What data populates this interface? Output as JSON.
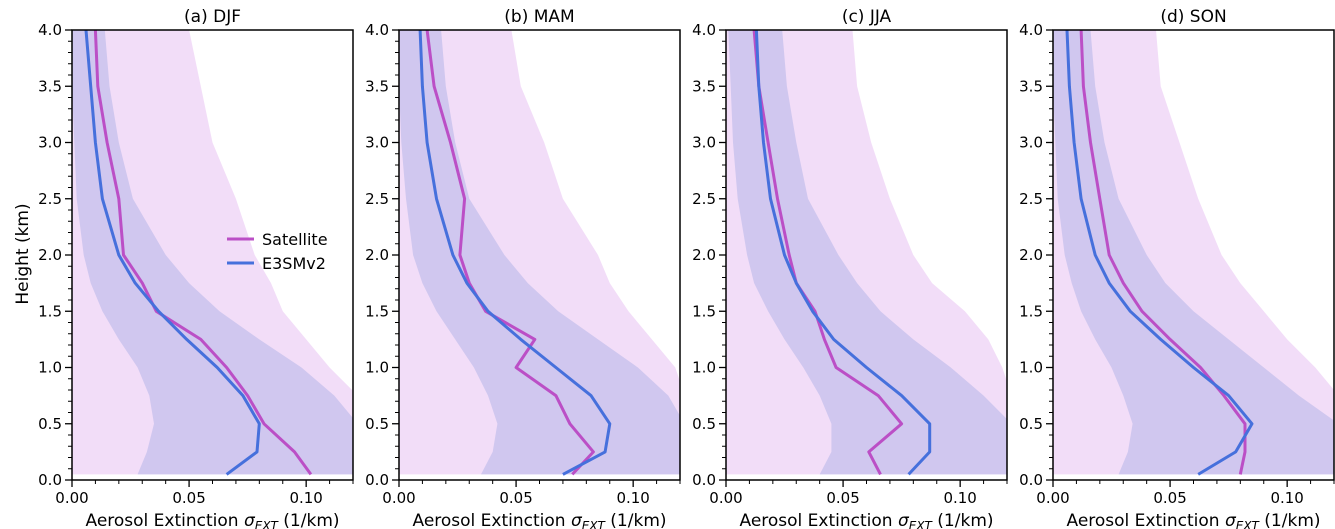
{
  "colors": {
    "satellite": "#bb4fc6",
    "e3sm": "#4670dc",
    "satellite_band": "#e3b3ef",
    "e3sm_band": "#a6ace5"
  },
  "y_axis_label": "Height (km)",
  "x_axis_label_prefix": "Aerosol Extinction ",
  "x_axis_label_symbol": "σ",
  "x_axis_label_subscript": "EXT",
  "x_axis_label_suffix": " (1/km)",
  "legend": {
    "placement": "center-right of panel (a)",
    "satellite": "Satellite",
    "e3sm": "E3SMv2"
  },
  "chart_data": [
    {
      "type": "line",
      "title": "(a) DJF",
      "xlim": [
        0,
        0.12
      ],
      "ylim": [
        0,
        4.0
      ],
      "xticks": [
        "0.00",
        "0.05",
        "0.10"
      ],
      "yticks": [
        "0.0",
        "0.5",
        "1.0",
        "1.5",
        "2.0",
        "2.5",
        "3.0",
        "3.5",
        "4.0"
      ],
      "heights": [
        0.05,
        0.25,
        0.5,
        0.75,
        1.0,
        1.25,
        1.5,
        1.75,
        2.0,
        2.5,
        3.0,
        3.5,
        4.0
      ],
      "series": [
        {
          "name": "Satellite",
          "values": [
            0.102,
            0.095,
            0.082,
            0.075,
            0.066,
            0.055,
            0.036,
            0.03,
            0.022,
            0.02,
            0.015,
            0.011,
            0.01
          ]
        },
        {
          "name": "E3SMv2",
          "values": [
            0.066,
            0.079,
            0.08,
            0.073,
            0.062,
            0.049,
            0.037,
            0.027,
            0.02,
            0.013,
            0.01,
            0.008,
            0.006
          ]
        }
      ],
      "satellite_band": {
        "lower": [
          0.0,
          0.0,
          0.0,
          0.0,
          0.0,
          0.0,
          0.0,
          0.0,
          0.0,
          0.0,
          0.0,
          0.0,
          0.0
        ],
        "upper": [
          0.122,
          0.122,
          0.122,
          0.122,
          0.11,
          0.1,
          0.09,
          0.085,
          0.078,
          0.07,
          0.06,
          0.055,
          0.05
        ]
      },
      "e3sm_band": {
        "lower": [
          0.028,
          0.032,
          0.035,
          0.033,
          0.028,
          0.02,
          0.013,
          0.008,
          0.005,
          0.002,
          0.001,
          0.0,
          0.0
        ],
        "upper": [
          0.122,
          0.122,
          0.122,
          0.112,
          0.098,
          0.08,
          0.063,
          0.05,
          0.04,
          0.026,
          0.02,
          0.016,
          0.014
        ]
      }
    },
    {
      "type": "line",
      "title": "(b) MAM",
      "xlim": [
        0,
        0.12
      ],
      "ylim": [
        0,
        4.0
      ],
      "xticks": [
        "0.00",
        "0.05",
        "0.10"
      ],
      "yticks": [
        "0.0",
        "0.5",
        "1.0",
        "1.5",
        "2.0",
        "2.5",
        "3.0",
        "3.5",
        "4.0"
      ],
      "heights": [
        0.05,
        0.25,
        0.5,
        0.75,
        1.0,
        1.25,
        1.5,
        1.75,
        2.0,
        2.5,
        3.0,
        3.5,
        4.0
      ],
      "series": [
        {
          "name": "Satellite",
          "values": [
            0.074,
            0.083,
            0.073,
            0.067,
            0.05,
            0.058,
            0.037,
            0.03,
            0.026,
            0.028,
            0.022,
            0.015,
            0.012
          ]
        },
        {
          "name": "E3SMv2",
          "values": [
            0.07,
            0.088,
            0.09,
            0.082,
            0.067,
            0.052,
            0.038,
            0.029,
            0.023,
            0.016,
            0.012,
            0.01,
            0.009
          ]
        }
      ],
      "satellite_band": {
        "lower": [
          0.0,
          0.0,
          0.0,
          0.0,
          0.0,
          0.0,
          0.0,
          0.0,
          0.0,
          0.0,
          0.0,
          0.0,
          0.0
        ],
        "upper": [
          0.122,
          0.122,
          0.122,
          0.122,
          0.118,
          0.108,
          0.098,
          0.09,
          0.085,
          0.07,
          0.062,
          0.052,
          0.048
        ]
      },
      "e3sm_band": {
        "lower": [
          0.035,
          0.04,
          0.042,
          0.038,
          0.032,
          0.024,
          0.016,
          0.01,
          0.006,
          0.003,
          0.001,
          0.0,
          0.0
        ],
        "upper": [
          0.122,
          0.122,
          0.122,
          0.115,
          0.102,
          0.085,
          0.068,
          0.055,
          0.045,
          0.03,
          0.024,
          0.02,
          0.018
        ]
      }
    },
    {
      "type": "line",
      "title": "(c) JJA",
      "xlim": [
        0,
        0.12
      ],
      "ylim": [
        0,
        4.0
      ],
      "xticks": [
        "0.00",
        "0.05",
        "0.10"
      ],
      "yticks": [
        "0.0",
        "0.5",
        "1.0",
        "1.5",
        "2.0",
        "2.5",
        "3.0",
        "3.5",
        "4.0"
      ],
      "heights": [
        0.05,
        0.25,
        0.5,
        0.75,
        1.0,
        1.25,
        1.5,
        1.75,
        2.0,
        2.5,
        3.0,
        3.5,
        4.0
      ],
      "series": [
        {
          "name": "Satellite",
          "values": [
            0.066,
            0.061,
            0.075,
            0.065,
            0.047,
            0.042,
            0.038,
            0.03,
            0.027,
            0.022,
            0.018,
            0.014,
            0.012
          ]
        },
        {
          "name": "E3SMv2",
          "values": [
            0.078,
            0.087,
            0.087,
            0.075,
            0.06,
            0.046,
            0.037,
            0.03,
            0.025,
            0.019,
            0.016,
            0.014,
            0.013
          ]
        }
      ],
      "satellite_band": {
        "lower": [
          0.0,
          0.0,
          0.0,
          0.0,
          0.0,
          0.0,
          0.0,
          0.0,
          0.0,
          0.0,
          0.0,
          0.0,
          0.0
        ],
        "upper": [
          0.122,
          0.122,
          0.122,
          0.122,
          0.118,
          0.112,
          0.102,
          0.088,
          0.08,
          0.07,
          0.062,
          0.056,
          0.054
        ]
      },
      "e3sm_band": {
        "lower": [
          0.04,
          0.045,
          0.045,
          0.04,
          0.033,
          0.025,
          0.018,
          0.012,
          0.009,
          0.005,
          0.003,
          0.002,
          0.001
        ],
        "upper": [
          0.122,
          0.122,
          0.122,
          0.11,
          0.096,
          0.08,
          0.066,
          0.056,
          0.048,
          0.035,
          0.03,
          0.026,
          0.024
        ]
      }
    },
    {
      "type": "line",
      "title": "(d) SON",
      "xlim": [
        0,
        0.12
      ],
      "ylim": [
        0,
        4.0
      ],
      "xticks": [
        "0.00",
        "0.05",
        "0.10"
      ],
      "yticks": [
        "0.0",
        "0.5",
        "1.0",
        "1.5",
        "2.0",
        "2.5",
        "3.0",
        "3.5",
        "4.0"
      ],
      "heights": [
        0.05,
        0.25,
        0.5,
        0.75,
        1.0,
        1.25,
        1.5,
        1.75,
        2.0,
        2.5,
        3.0,
        3.5,
        4.0
      ],
      "series": [
        {
          "name": "Satellite",
          "values": [
            0.08,
            0.082,
            0.082,
            0.073,
            0.063,
            0.05,
            0.038,
            0.03,
            0.024,
            0.02,
            0.016,
            0.013,
            0.012
          ]
        },
        {
          "name": "E3SMv2",
          "values": [
            0.062,
            0.078,
            0.085,
            0.075,
            0.06,
            0.046,
            0.033,
            0.024,
            0.018,
            0.012,
            0.009,
            0.007,
            0.006
          ]
        }
      ],
      "satellite_band": {
        "lower": [
          0.0,
          0.0,
          0.0,
          0.0,
          0.0,
          0.0,
          0.0,
          0.0,
          0.0,
          0.0,
          0.0,
          0.0,
          0.0
        ],
        "upper": [
          0.122,
          0.122,
          0.122,
          0.122,
          0.112,
          0.1,
          0.09,
          0.08,
          0.072,
          0.062,
          0.054,
          0.046,
          0.044
        ]
      },
      "e3sm_band": {
        "lower": [
          0.028,
          0.032,
          0.034,
          0.03,
          0.025,
          0.018,
          0.012,
          0.008,
          0.005,
          0.002,
          0.001,
          0.0,
          0.0
        ],
        "upper": [
          0.122,
          0.122,
          0.122,
          0.105,
          0.09,
          0.075,
          0.06,
          0.048,
          0.04,
          0.028,
          0.022,
          0.018,
          0.016
        ]
      }
    }
  ]
}
